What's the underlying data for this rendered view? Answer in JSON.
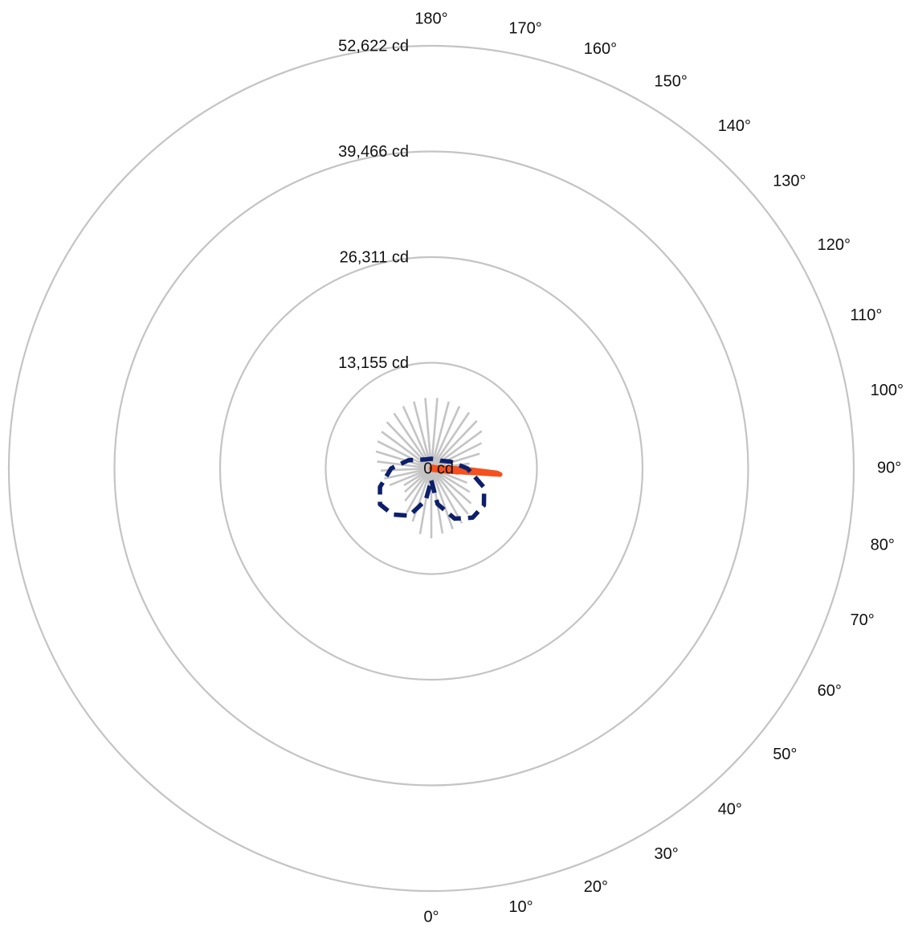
{
  "chart_data": {
    "type": "polar-line",
    "title": "",
    "angle_unit": "°",
    "angle_ticks": [
      0,
      10,
      20,
      30,
      40,
      50,
      60,
      70,
      80,
      90,
      100,
      110,
      120,
      130,
      140,
      150,
      160,
      170,
      180
    ],
    "angle_tick_labels": [
      "0°",
      "10°",
      "20°",
      "30°",
      "40°",
      "50°",
      "60°",
      "70°",
      "80°",
      "90°",
      "100°",
      "110°",
      "120°",
      "130°",
      "140°",
      "150°",
      "160°",
      "170°",
      "180°"
    ],
    "radial_ticks": [
      0,
      13155,
      26311,
      39466,
      52622
    ],
    "radial_tick_labels": [
      "0 cd",
      "13,155 cd",
      "26,311 cd",
      "39,466 cd",
      "52,622 cd"
    ],
    "rlim": [
      0,
      52622
    ],
    "grid": true,
    "spoke_lengths_cd": [
      8700,
      8200,
      8000,
      7800,
      7300,
      6600,
      5600,
      4800,
      3500,
      4400,
      4800,
      6300,
      7000,
      7800,
      8200,
      8400,
      8500,
      8600,
      8800,
      8800,
      8600,
      8500,
      8300,
      8000,
      7700,
      7500,
      7200,
      6800,
      6300,
      6000,
      5600,
      4000,
      4400,
      5200,
      6300,
      7000,
      8300
    ],
    "series": [
      {
        "color": "#f4511e",
        "line_style": "solid",
        "points": [
          {
            "angle": 0,
            "value": 0
          },
          {
            "angle": 45,
            "value": 200
          },
          {
            "angle": 80,
            "value": 2100
          },
          {
            "angle": 84,
            "value": 5200
          },
          {
            "angle": 85,
            "value": 8600
          },
          {
            "angle": 86,
            "value": 8200
          },
          {
            "angle": 88,
            "value": 5000
          },
          {
            "angle": 90,
            "value": 2900
          },
          {
            "angle": 100,
            "value": 600
          },
          {
            "angle": 160,
            "value": 200
          },
          {
            "angle": 180,
            "value": 0
          }
        ]
      },
      {
        "color": "#0d1f6b",
        "line_style": "dashed",
        "points": [
          {
            "angle": 0,
            "value": 1500
          },
          {
            "angle": 10,
            "value": 4500
          },
          {
            "angle": 25,
            "value": 6900
          },
          {
            "angle": 40,
            "value": 8000
          },
          {
            "angle": 55,
            "value": 8000
          },
          {
            "angle": 70,
            "value": 7000
          },
          {
            "angle": 90,
            "value": 4500
          },
          {
            "angle": 110,
            "value": 2500
          },
          {
            "angle": 130,
            "value": 1500
          },
          {
            "angle": 150,
            "value": 1300
          },
          {
            "angle": 180,
            "value": 1200
          },
          {
            "angle": 210,
            "value": 1300
          },
          {
            "angle": 230,
            "value": 1700
          },
          {
            "angle": 250,
            "value": 3000
          },
          {
            "angle": 270,
            "value": 5000
          },
          {
            "angle": 290,
            "value": 6800
          },
          {
            "angle": 305,
            "value": 7800
          },
          {
            "angle": 320,
            "value": 7500
          },
          {
            "angle": 335,
            "value": 6500
          },
          {
            "angle": 350,
            "value": 4000
          },
          {
            "angle": 360,
            "value": 1500
          }
        ]
      }
    ]
  }
}
